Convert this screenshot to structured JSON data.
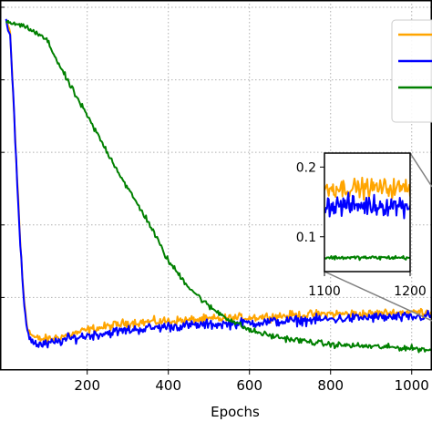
{
  "chart_data": [
    {
      "type": "line",
      "xlabel": "Epochs",
      "ylabel": "",
      "xlim": [
        -15,
        1050
      ],
      "ylim": [
        0.0,
        1.02
      ],
      "grid": true,
      "grid_style": "dotted",
      "legend_placement": "top-right",
      "x_ticks": [
        200,
        400,
        600,
        800,
        1000
      ],
      "x_tick_labels": [
        "200",
        "400",
        "600",
        "800",
        "1000"
      ],
      "y_gridlines": [
        0.2,
        0.4,
        0.6,
        0.8,
        1.0
      ],
      "series": [
        {
          "color": "#ffa500",
          "x": [
            0,
            10,
            20,
            25,
            30,
            35,
            40,
            45,
            50,
            55,
            60,
            70,
            80,
            100,
            150,
            200,
            300,
            400,
            500,
            600,
            700,
            800,
            900,
            1000,
            1050
          ],
          "y": [
            0.96,
            0.93,
            0.7,
            0.58,
            0.47,
            0.35,
            0.26,
            0.19,
            0.14,
            0.11,
            0.1,
            0.09,
            0.085,
            0.085,
            0.095,
            0.11,
            0.13,
            0.135,
            0.14,
            0.145,
            0.15,
            0.155,
            0.155,
            0.16,
            0.16
          ]
        },
        {
          "color": "#0000ff",
          "x": [
            0,
            10,
            20,
            25,
            30,
            35,
            40,
            45,
            50,
            55,
            60,
            70,
            80,
            100,
            150,
            200,
            300,
            400,
            500,
            600,
            700,
            800,
            900,
            1000,
            1050
          ],
          "y": [
            0.96,
            0.93,
            0.7,
            0.57,
            0.45,
            0.34,
            0.25,
            0.18,
            0.13,
            0.1,
            0.085,
            0.075,
            0.07,
            0.07,
            0.085,
            0.095,
            0.11,
            0.12,
            0.125,
            0.13,
            0.135,
            0.14,
            0.145,
            0.145,
            0.15
          ]
        },
        {
          "color": "#008000",
          "x": [
            0,
            50,
            100,
            150,
            200,
            250,
            300,
            350,
            400,
            450,
            500,
            550,
            600,
            650,
            700,
            800,
            900,
            1000,
            1050
          ],
          "y": [
            0.96,
            0.945,
            0.91,
            0.8,
            0.7,
            0.6,
            0.5,
            0.41,
            0.3,
            0.23,
            0.175,
            0.14,
            0.11,
            0.095,
            0.085,
            0.07,
            0.065,
            0.06,
            0.055
          ]
        }
      ]
    },
    {
      "type": "line",
      "inset": true,
      "xlim": [
        1100,
        1200
      ],
      "ylim": [
        0.05,
        0.22
      ],
      "x_ticks": [
        1100,
        1200
      ],
      "x_tick_labels": [
        "1100",
        "1200"
      ],
      "y_ticks": [
        0.1,
        0.2
      ],
      "y_tick_labels": [
        "0.1",
        "0.2"
      ],
      "series": [
        {
          "color": "#ffa500",
          "level": 0.17,
          "noise": 0.02
        },
        {
          "color": "#0000ff",
          "level": 0.145,
          "noise": 0.022
        },
        {
          "color": "#008000",
          "level": 0.07,
          "noise": 0.004
        }
      ]
    }
  ]
}
